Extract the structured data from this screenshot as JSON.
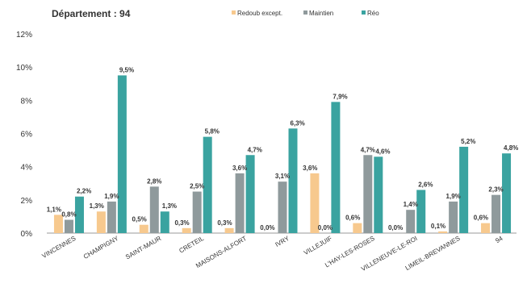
{
  "chart_data": {
    "type": "bar",
    "title": "Département : 94",
    "categories": [
      "VINCENNES",
      "CHAMPIGNY",
      "SAINT-MAUR",
      "CRETEIL",
      "MAISONS-ALFORT",
      "IVRY",
      "VILLEJUIF",
      "L'HAY-LES-ROSES",
      "VILLENEUVE-LE-ROI",
      "LIMEIL-BREVANNES",
      "94"
    ],
    "series": [
      {
        "name": "Redoub except.",
        "color": "#f7c98e",
        "values": [
          1.1,
          1.3,
          0.5,
          0.3,
          0.3,
          0.0,
          3.6,
          0.6,
          0.0,
          0.1,
          0.6
        ],
        "labels": [
          "1,1%",
          "1,3%",
          "0,5%",
          "0,3%",
          "0,3%",
          "0,0%",
          "3,6%",
          "0,6%",
          "0,0%",
          "0,1%",
          "0,6%"
        ]
      },
      {
        "name": "Maintien",
        "color": "#8f9a9c",
        "values": [
          0.8,
          1.9,
          2.8,
          2.5,
          3.6,
          3.1,
          0.0,
          4.7,
          1.4,
          1.9,
          2.3
        ],
        "labels": [
          "0,8%",
          "1,9%",
          "2,8%",
          "2,5%",
          "3,6%",
          "3,1%",
          "0,0%",
          "4,7%",
          "1,4%",
          "1,9%",
          "2,3%"
        ]
      },
      {
        "name": "Réo",
        "color": "#3aa3a0",
        "values": [
          2.2,
          9.5,
          1.3,
          5.8,
          4.7,
          6.3,
          7.9,
          4.6,
          2.6,
          5.2,
          4.8
        ],
        "labels": [
          "2,2%",
          "9,5%",
          "1,3%",
          "5,8%",
          "4,7%",
          "6,3%",
          "7,9%",
          "4,6%",
          "2,6%",
          "5,2%",
          "4,8%"
        ]
      }
    ],
    "ylim": [
      0,
      12
    ],
    "yticks": [
      0,
      2,
      4,
      6,
      8,
      10,
      12
    ],
    "ytick_labels": [
      "0%",
      "2%",
      "4%",
      "6%",
      "8%",
      "10%",
      "12%"
    ],
    "legend_position": "top-right",
    "grid": false
  }
}
